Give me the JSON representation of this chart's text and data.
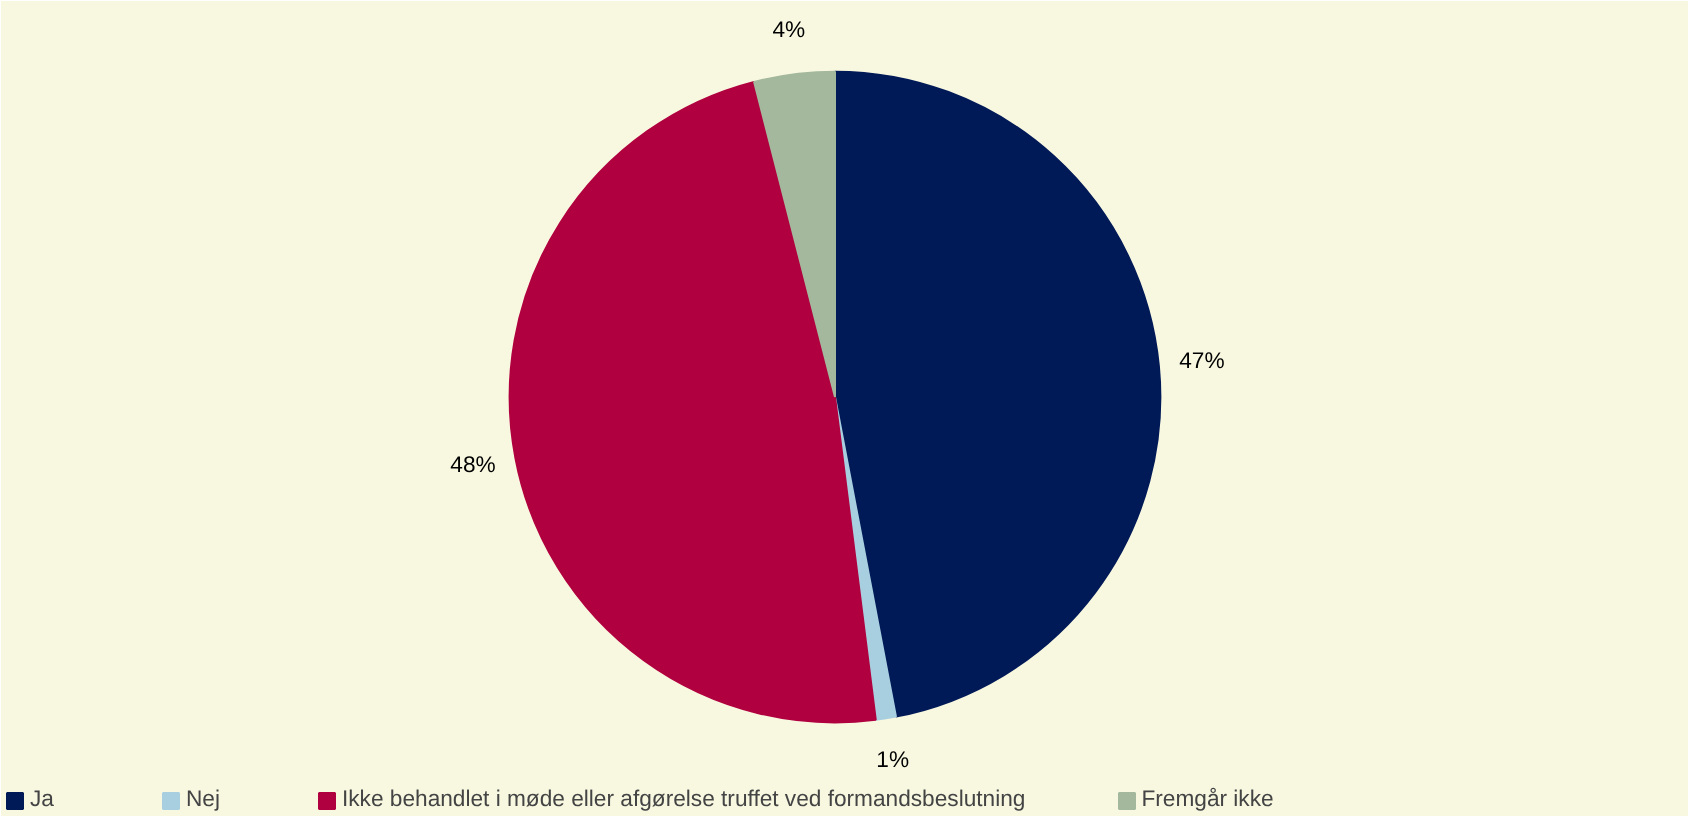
{
  "chart_data": {
    "type": "pie",
    "categories": [
      "Ja",
      "Nej",
      "Ikke behandlet i møde eller afgørelse truffet ved formandsbeslutning",
      "Fremgår ikke"
    ],
    "values": [
      47,
      1,
      48,
      4
    ],
    "colors": [
      "#001a57",
      "#a8cfe0",
      "#b0003f",
      "#a3b89c"
    ],
    "value_labels": [
      "47%",
      "1%",
      "48%",
      "4%"
    ],
    "legend": "bottom"
  }
}
